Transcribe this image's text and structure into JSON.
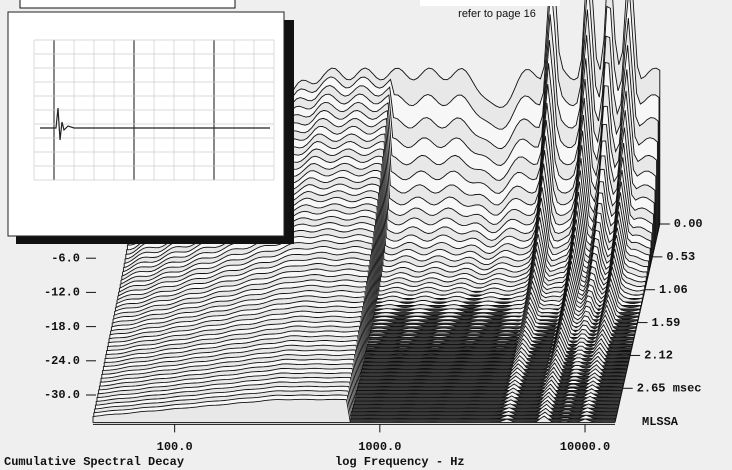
{
  "chart_data": {
    "type": "waterfall",
    "title": "Cumulative Spectral Decay",
    "xlabel": "log Frequency - Hz",
    "note": "refer to page 16",
    "annotation": "MLSSA",
    "xscale": "log",
    "xlim": [
      40,
      14000
    ],
    "xticks": [
      {
        "value": 100,
        "label": "100.0"
      },
      {
        "value": 1000,
        "label": "1000.0"
      },
      {
        "value": 10000,
        "label": "10000.0"
      }
    ],
    "ylim": [
      -36,
      0
    ],
    "yticks": [
      {
        "value": -6,
        "label": "-6.0"
      },
      {
        "value": -12,
        "label": "-12.0"
      },
      {
        "value": -18,
        "label": "-18.0"
      },
      {
        "value": -24,
        "label": "-24.0"
      },
      {
        "value": -30,
        "label": "-30.0"
      }
    ],
    "zlim": [
      0,
      3.2
    ],
    "zticks": [
      {
        "value": 0,
        "label": "0.00"
      },
      {
        "value": 0.53,
        "label": "0.53"
      },
      {
        "value": 1.06,
        "label": "1.06"
      },
      {
        "value": 1.59,
        "label": "1.59"
      },
      {
        "value": 2.12,
        "label": "2.12"
      },
      {
        "value": 2.65,
        "label": "2.65 msec"
      }
    ]
  }
}
